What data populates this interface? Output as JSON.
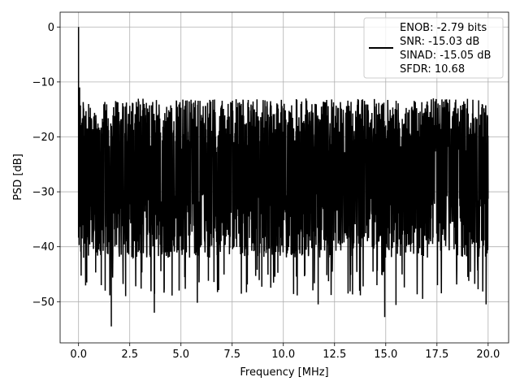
{
  "chart_data": {
    "type": "line",
    "title": "",
    "xlabel": "Frequency [MHz]",
    "ylabel": "PSD [dB]",
    "xlim": [
      -0.9,
      21.0
    ],
    "ylim": [
      -57.5,
      2.7
    ],
    "xticks": [
      0.0,
      2.5,
      5.0,
      7.5,
      10.0,
      12.5,
      15.0,
      17.5,
      20.0
    ],
    "xtick_labels": [
      "0.0",
      "2.5",
      "5.0",
      "7.5",
      "10.0",
      "12.5",
      "15.0",
      "17.5",
      "20.0"
    ],
    "yticks": [
      0,
      -10,
      -20,
      -30,
      -40,
      -50
    ],
    "ytick_labels": [
      "0",
      "−10",
      "−20",
      "−30",
      "−40",
      "−50"
    ],
    "grid": true,
    "legend_position": "top-right",
    "legend": [
      "ENOB: -2.79 bits",
      "SNR: -15.03 dB",
      "SINAD: -15.05 dB",
      "SFDR: 10.68"
    ],
    "series": [
      {
        "color": "#000000",
        "x_range": [
          0.0,
          20.0
        ],
        "peak": {
          "x": 0.0,
          "y": 0.0
        },
        "noise_band": {
          "upper": -20,
          "lower": -38
        },
        "notable_points": [
          {
            "x": 0.05,
            "y": -11
          },
          {
            "x": 0.25,
            "y": -42
          },
          {
            "x": 0.4,
            "y": -46.5
          },
          {
            "x": 1.3,
            "y": -48
          },
          {
            "x": 1.6,
            "y": -54.5
          },
          {
            "x": 2.3,
            "y": -49
          },
          {
            "x": 3.7,
            "y": -52
          },
          {
            "x": 5.8,
            "y": -50.2
          },
          {
            "x": 8.2,
            "y": -48.3
          },
          {
            "x": 10.5,
            "y": -48.6
          },
          {
            "x": 11.7,
            "y": -50.5
          },
          {
            "x": 14.95,
            "y": -52.8
          },
          {
            "x": 15.5,
            "y": -50.6
          },
          {
            "x": 16.8,
            "y": -49.5
          },
          {
            "x": 19.9,
            "y": -50.5
          },
          {
            "x": 19.8,
            "y": -14.8
          },
          {
            "x": 6.3,
            "y": -13.8
          },
          {
            "x": 3.2,
            "y": -14
          }
        ]
      }
    ]
  }
}
